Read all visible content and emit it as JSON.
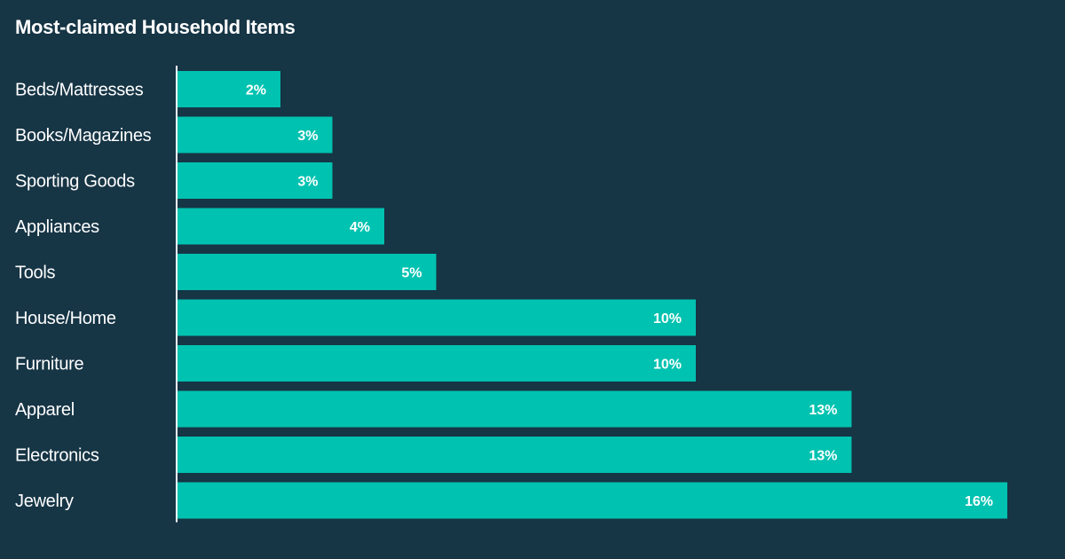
{
  "chart_data": {
    "type": "bar",
    "orientation": "horizontal",
    "title": "Most-claimed Household Items",
    "categories": [
      "Beds/Mattresses",
      "Books/Magazines",
      "Sporting Goods",
      "Appliances",
      "Tools",
      "House/Home",
      "Furniture",
      "Apparel",
      "Electronics",
      "Jewelry"
    ],
    "values": [
      2,
      3,
      3,
      4,
      5,
      10,
      10,
      13,
      13,
      16
    ],
    "value_labels": [
      "2%",
      "3%",
      "3%",
      "4%",
      "5%",
      "10%",
      "10%",
      "13%",
      "13%",
      "16%"
    ],
    "value_unit": "%",
    "xlim": [
      0,
      16
    ],
    "grid": false,
    "legend": "none",
    "colors": {
      "background": "#163545",
      "bar": "#00c2b0",
      "axis": "#ffffff",
      "text": "#ffffff"
    }
  }
}
